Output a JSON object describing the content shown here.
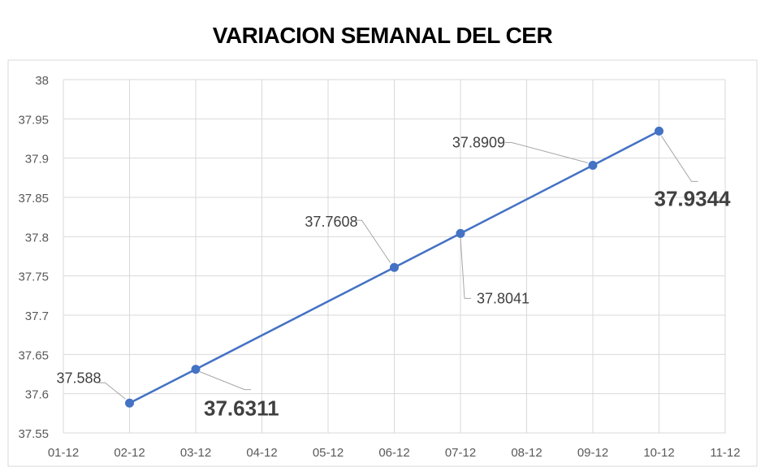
{
  "chart_data": {
    "type": "line",
    "title": "VARIACION SEMANAL DEL CER",
    "categories": [
      "01-12",
      "02-12",
      "03-12",
      "04-12",
      "05-12",
      "06-12",
      "07-12",
      "08-12",
      "09-12",
      "10-12",
      "11-12"
    ],
    "series": [
      {
        "points": [
          {
            "x": "02-12",
            "y": 37.588,
            "label": "37.588",
            "bold": false
          },
          {
            "x": "03-12",
            "y": 37.6311,
            "label": "37.6311",
            "bold": true
          },
          {
            "x": "06-12",
            "y": 37.7608,
            "label": "37.7608",
            "bold": false
          },
          {
            "x": "07-12",
            "y": 37.8041,
            "label": "37.8041",
            "bold": false
          },
          {
            "x": "09-12",
            "y": 37.8909,
            "label": "37.8909",
            "bold": false
          },
          {
            "x": "10-12",
            "y": 37.9344,
            "label": "37.9344",
            "bold": true
          }
        ]
      }
    ],
    "y_ticks": [
      "37.55",
      "37.6",
      "37.65",
      "37.7",
      "37.75",
      "37.8",
      "37.85",
      "37.9",
      "37.95",
      "38"
    ],
    "ylim": [
      37.55,
      38
    ],
    "grid": true,
    "line_color": "#4472C4",
    "label_color": "#404040",
    "grid_color": "#D9D9D9"
  }
}
